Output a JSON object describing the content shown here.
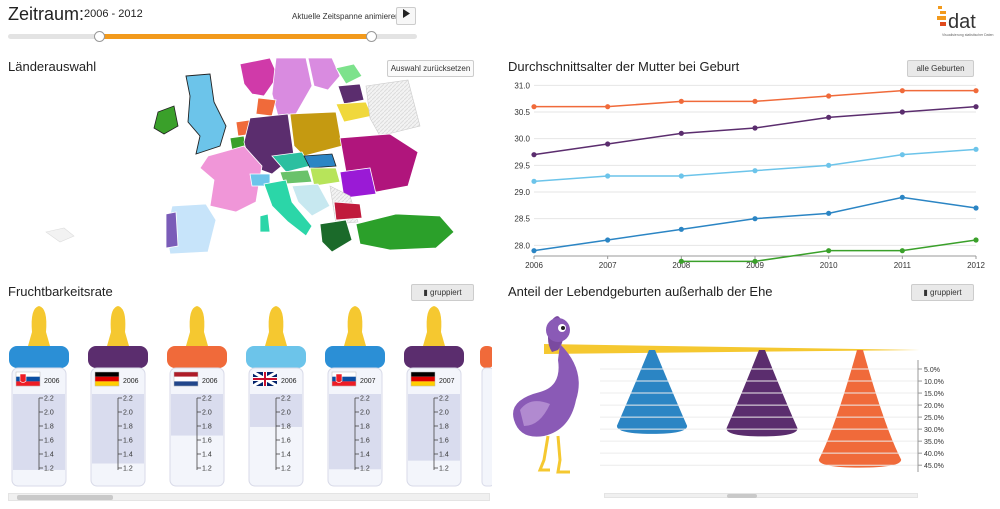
{
  "header": {
    "title": "Zeitraum:",
    "range": "2006 - 2012",
    "animate_label": "Aktuelle Zeitspanne animieren",
    "play_icon": "play-icon",
    "slider": {
      "min_year": 2006,
      "max_year": 2012
    },
    "logo_text": "dat",
    "logo_subtext": "Visualisierung statistischer Daten"
  },
  "map": {
    "title": "Länderauswahl",
    "reset_label": "Auswahl zurücksetzen"
  },
  "line_chart": {
    "title": "Durchschnittsalter der Mutter bei Geburt",
    "filter_label": "alle Geburten"
  },
  "chart_data": [
    {
      "type": "line",
      "title": "Durchschnittsalter der Mutter bei Geburt",
      "x": [
        2006,
        2007,
        2008,
        2009,
        2010,
        2011,
        2012
      ],
      "xlabel": "",
      "ylabel": "",
      "ylim": [
        27.8,
        31.1
      ],
      "yticks": [
        "28.0",
        "28.5",
        "29.0",
        "29.5",
        "30.0",
        "30.5",
        "31.0"
      ],
      "grid": true,
      "series": [
        {
          "color": "#f06a3a",
          "values": [
            30.6,
            30.6,
            30.7,
            30.7,
            30.8,
            30.9,
            30.9
          ]
        },
        {
          "color": "#5b2d6e",
          "values": [
            29.7,
            29.9,
            30.1,
            30.2,
            30.4,
            30.5,
            30.6
          ]
        },
        {
          "color": "#6cc4ea",
          "values": [
            29.2,
            29.3,
            29.3,
            29.4,
            29.5,
            29.7,
            29.8
          ]
        },
        {
          "color": "#2b85c4",
          "values": [
            27.9,
            28.1,
            28.3,
            28.5,
            28.6,
            28.9,
            28.7
          ]
        },
        {
          "color": "#3aa02a",
          "values": [
            null,
            null,
            27.7,
            27.7,
            27.9,
            27.9,
            28.1
          ]
        }
      ]
    },
    {
      "type": "bar",
      "title": "Fruchtbarkeitsrate",
      "ylim": [
        1.1,
        2.3
      ],
      "ticks": [
        "2.2",
        "2.0",
        "1.8",
        "1.6",
        "1.4",
        "1.2"
      ],
      "bottles": [
        {
          "flag": "slovakia",
          "year": "2006",
          "cap": "#2b8fd6",
          "value": 1.24
        },
        {
          "flag": "germany",
          "year": "2006",
          "cap": "#5b2d6e",
          "value": 1.33
        },
        {
          "flag": "netherlands",
          "year": "2006",
          "cap": "#f06a3a",
          "value": 1.72
        },
        {
          "flag": "uk",
          "year": "2006",
          "cap": "#6cc4ea",
          "value": 1.84
        },
        {
          "flag": "slovakia",
          "year": "2007",
          "cap": "#2b8fd6",
          "value": 1.25
        },
        {
          "flag": "germany",
          "year": "2007",
          "cap": "#5b2d6e",
          "value": 1.37
        }
      ]
    },
    {
      "type": "bar",
      "title": "Anteil der Lebendgeburten außerhalb der Ehe",
      "yticks": [
        "5.0%",
        "10.0%",
        "15.0%",
        "20.0%",
        "25.0%",
        "30.0%",
        "35.0%",
        "40.0%",
        "45.0%"
      ],
      "ylim": [
        2.5,
        47
      ],
      "drops": [
        {
          "color": "#2b85c4",
          "value": 32
        },
        {
          "color": "#5b2d6e",
          "value": 33
        },
        {
          "color": "#f06a3a",
          "value": 46
        }
      ]
    }
  ],
  "fertility": {
    "title": "Fruchtbarkeitsrate",
    "group_label": "gruppiert",
    "bars_icon": "bar-chart-icon"
  },
  "births": {
    "title": "Anteil der Lebendgeburten außerhalb der Ehe",
    "group_label": "gruppiert",
    "bars_icon": "bar-chart-icon"
  }
}
